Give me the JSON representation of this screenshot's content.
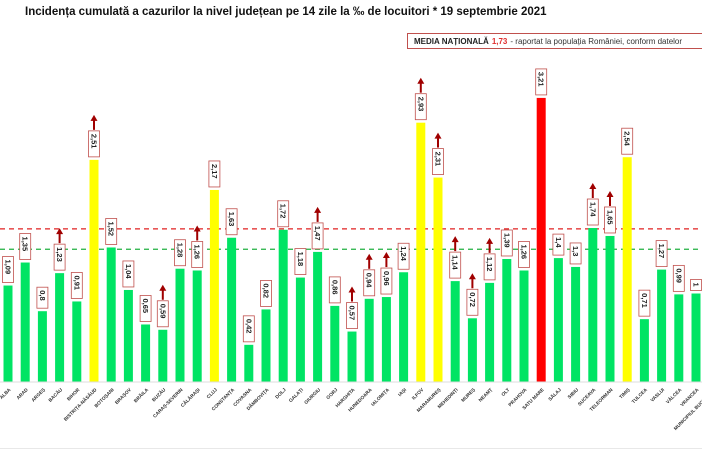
{
  "chart_data": {
    "type": "bar",
    "title": "Incidența cumulată a cazurilor la nivel județean pe 14 zile la ‰ de locuitori * 19 septembrie 2021",
    "legend": {
      "label": "MEDIA NAȚIONALĂ",
      "value": "1,73",
      "note": "- raportat la populația României, conform datelor"
    },
    "national_average": 1.73,
    "green_threshold": 1.5,
    "ylim": [
      0,
      3.3
    ],
    "categories": [
      "ALBA",
      "ARAD",
      "ARGEȘ",
      "BACĂU",
      "BIHOR",
      "BISTRIȚA-NĂSĂUD",
      "BOTOȘANI",
      "BRAȘOV",
      "BRĂILA",
      "BUZĂU",
      "CARAȘ-SEVERIN",
      "CĂLĂRAȘI",
      "CLUJ",
      "CONSTANȚA",
      "COVASNA",
      "DÂMBOVIȚA",
      "DOLJ",
      "GALAȚI",
      "GIURGIU",
      "GORJ",
      "HARGHITA",
      "HUNEDOARA",
      "IALOMIȚA",
      "IAȘI",
      "ILFOV",
      "MARAMUREȘ",
      "MEHEDINȚI",
      "MUREȘ",
      "NEAMȚ",
      "OLT",
      "PRAHOVA",
      "SATU MARE",
      "SĂLAJ",
      "SIBIU",
      "SUCEAVA",
      "TELEORMAN",
      "TIMIȘ",
      "TULCEA",
      "VASLUI",
      "VÂLCEA",
      "VRANCEA",
      "MUNICIPIUL BUCUREȘTI"
    ],
    "values": [
      1.09,
      1.35,
      0.8,
      1.23,
      0.91,
      2.51,
      1.52,
      1.04,
      0.65,
      0.59,
      1.28,
      1.26,
      2.17,
      1.63,
      0.42,
      0.82,
      1.72,
      1.18,
      1.47,
      0.86,
      0.57,
      0.94,
      0.96,
      1.24,
      2.93,
      2.31,
      1.14,
      0.72,
      1.12,
      1.39,
      1.26,
      3.21,
      1.4,
      1.3,
      1.74,
      1.65,
      2.54,
      0.71,
      1.27,
      0.99,
      1.0,
      1.0
    ],
    "labels": [
      "1,09",
      "1,35",
      "0,8",
      "1,23",
      "0,91",
      "2,51",
      "1,52",
      "1,04",
      "0,65",
      "0,59",
      "1,28",
      "1,26",
      "2,17",
      "1,63",
      "0,42",
      "0,82",
      "1,72",
      "1,18",
      "1,47",
      "0,86",
      "0,57",
      "0,94",
      "0,96",
      "1,24",
      "2,93",
      "2,31",
      "1,14",
      "0,72",
      "1,12",
      "1,39",
      "1,26",
      "3,21",
      "1,4",
      "1,3",
      "1,74",
      "1,65",
      "2,54",
      "0,71",
      "1,27",
      "0,99",
      "1",
      ""
    ],
    "increasing": [
      3,
      5,
      9,
      11,
      18,
      20,
      21,
      22,
      24,
      25,
      26,
      27,
      28,
      34,
      35
    ],
    "colors": {
      "green": "#00e464",
      "yellow": "#ffff00",
      "red": "#ff0000",
      "avg_line": "#e02020",
      "threshold_line": "#20b040"
    }
  }
}
